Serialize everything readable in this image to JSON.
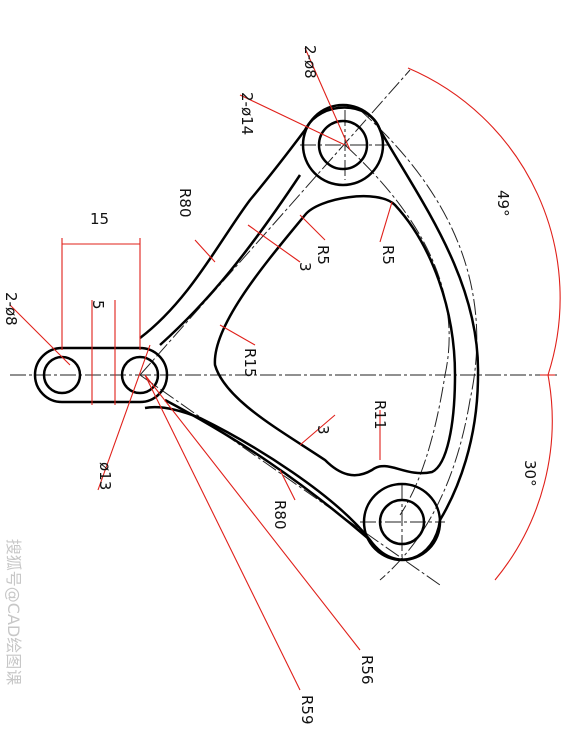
{
  "dimensions": {
    "hole_upper": "2-ø8",
    "boss_upper": "2-ø14",
    "r80_top": "R80",
    "r5_inner": "R5",
    "gap_3_top": "3",
    "r5_right": "R5",
    "r15": "R15",
    "width_15": "15",
    "slot_5": "5",
    "hole_left": "2-ø8",
    "dia_13": "ø13",
    "r11": "R11",
    "gap_3_bottom": "3",
    "r80_bottom": "R80",
    "r56": "R56",
    "r59": "R59",
    "angle_49": "49°",
    "angle_30": "30°"
  },
  "watermark": "搜狐号@CAD绘图课"
}
